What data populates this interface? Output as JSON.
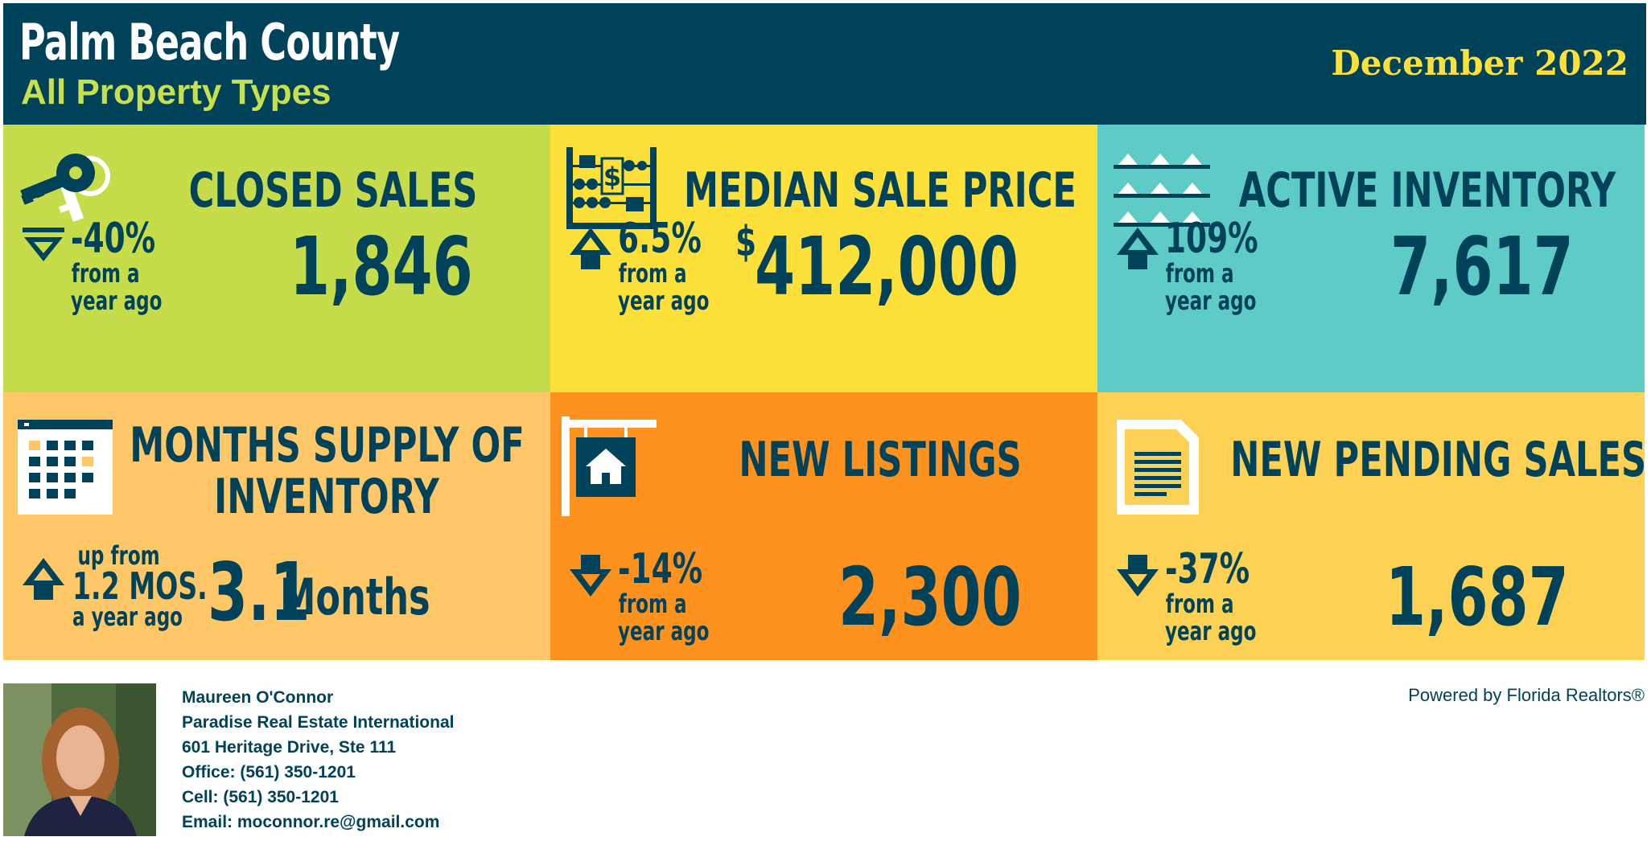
{
  "header": {
    "title": "Palm Beach County",
    "subtitle": "All Property Types",
    "date": "December 2022"
  },
  "colors": {
    "navy": "#00425a",
    "lime": "#c6dc4a",
    "yellow": "#fde03a",
    "teal": "#5ecbc6",
    "light_orange": "#fec869",
    "orange": "#fd931e",
    "gold": "#fdd153"
  },
  "tiles": {
    "closed_sales": {
      "title": "CLOSED SALES",
      "icon": "keys-icon",
      "direction": "down",
      "change": "-40%",
      "change_line1": "from a",
      "change_line2": "year ago",
      "value": "1,846"
    },
    "median_price": {
      "title": "MEDIAN SALE PRICE",
      "icon": "abacus-icon",
      "direction": "up",
      "change": "6.5%",
      "change_line1": "from a",
      "change_line2": "year ago",
      "currency": "$",
      "value": "412,000"
    },
    "active_inventory": {
      "title": "ACTIVE INVENTORY",
      "icon": "houses-on-shelves-icon",
      "direction": "up",
      "change": "109%",
      "change_line1": "from a",
      "change_line2": "year ago",
      "value": "7,617"
    },
    "months_supply": {
      "title_line1": "MONTHS SUPPLY OF",
      "title_line2": "INVENTORY",
      "icon": "calendar-icon",
      "direction": "up",
      "change_line0": "up from",
      "change": "1.2 MOS.",
      "change_line2": "a year ago",
      "value": "3.1",
      "unit": "Months"
    },
    "new_listings": {
      "title": "NEW LISTINGS",
      "icon": "house-sign-icon",
      "direction": "down",
      "change": "-14%",
      "change_line1": "from a",
      "change_line2": "year ago",
      "value": "2,300"
    },
    "new_pending": {
      "title": "NEW PENDING SALES",
      "icon": "document-icon",
      "direction": "down",
      "change": "-37%",
      "change_line1": "from a",
      "change_line2": "year ago",
      "value": "1,687"
    }
  },
  "agent": {
    "name": "Maureen O'Connor",
    "company": "Paradise Real Estate International",
    "address": "601 Heritage Drive, Ste 111",
    "office": "Office: (561) 350-1201",
    "cell": "Cell: (561) 350-1201",
    "email": "Email: moconnor.re@gmail.com"
  },
  "powered_by": "Powered by Florida Realtors®"
}
